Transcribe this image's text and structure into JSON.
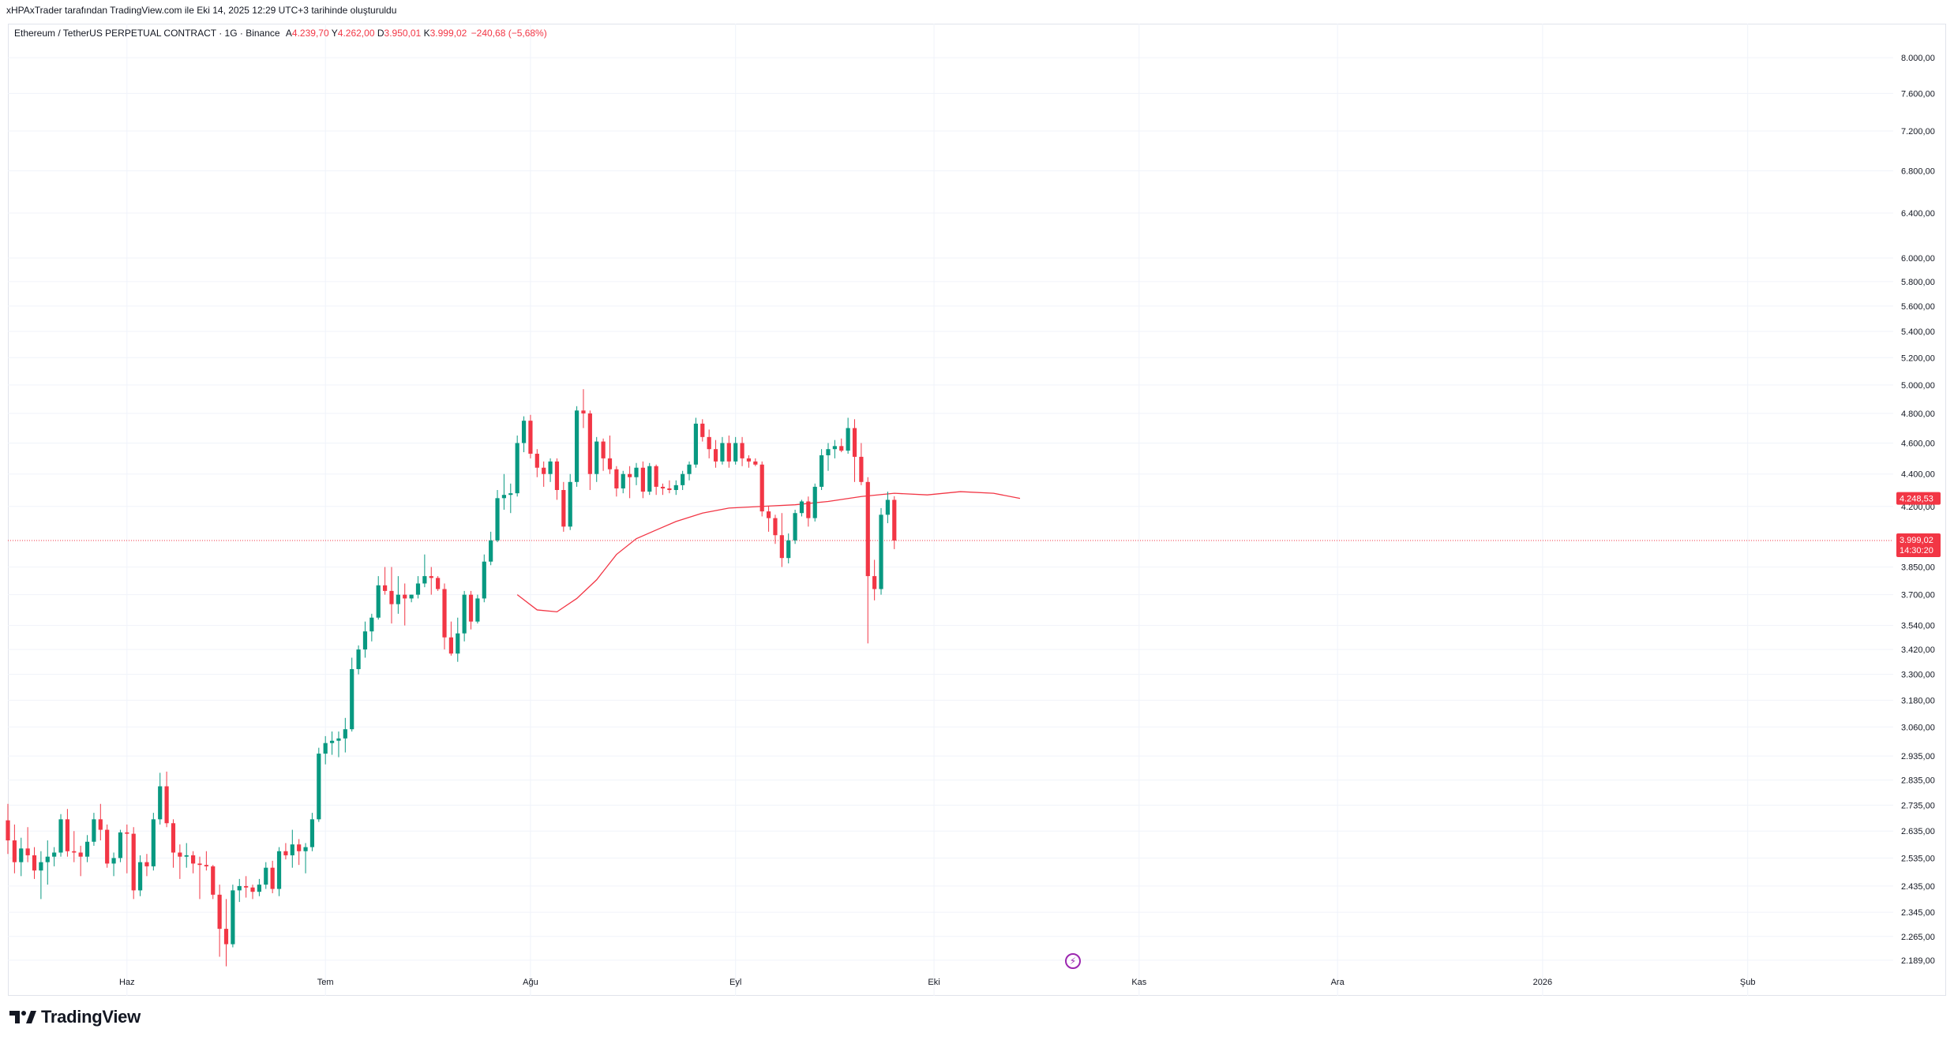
{
  "publish_line": "xHPAxTrader tarafından TradingView.com ile Eki 14, 2025 12:29 UTC+3 tarihinde oluşturuldu",
  "legend": {
    "symbol": "Ethereum / TetherUS PERPETUAL CONTRACT · 1G · Binance",
    "o_label": "A",
    "o_value": "4.239,70",
    "h_label": "Y",
    "h_value": "4.262,00",
    "l_label": "D",
    "l_value": "3.950,01",
    "c_label": "K",
    "c_value": "3.999,02",
    "change": "−240,68 (−5,68%)"
  },
  "price_tags": {
    "ma_value": "4.248,53",
    "last_price": "3.999,02",
    "countdown": "14:30:20"
  },
  "logo_text": "TradingView",
  "colors": {
    "up": "#089981",
    "down": "#f23645",
    "ma": "#f23645",
    "grid": "#f0f3fa",
    "tag_bg": "#f23645"
  },
  "chart_data": {
    "type": "candlestick",
    "title": "",
    "xlabel": "",
    "ylabel": "",
    "y_scale": "log",
    "ylim": [
      2080,
      8400
    ],
    "y_ticks": [
      {
        "value": 8000,
        "label": "8.000,00"
      },
      {
        "value": 7600,
        "label": "7.600,00"
      },
      {
        "value": 7200,
        "label": "7.200,00"
      },
      {
        "value": 6800,
        "label": "6.800,00"
      },
      {
        "value": 6400,
        "label": "6.400,00"
      },
      {
        "value": 6000,
        "label": "6.000,00"
      },
      {
        "value": 5800,
        "label": "5.800,00"
      },
      {
        "value": 5600,
        "label": "5.600,00"
      },
      {
        "value": 5400,
        "label": "5.400,00"
      },
      {
        "value": 5200,
        "label": "5.200,00"
      },
      {
        "value": 5000,
        "label": "5.000,00"
      },
      {
        "value": 4800,
        "label": "4.800,00"
      },
      {
        "value": 4600,
        "label": "4.600,00"
      },
      {
        "value": 4400,
        "label": "4.400,00"
      },
      {
        "value": 4200,
        "label": "4.200,00"
      },
      {
        "value": 3850,
        "label": "3.850,00"
      },
      {
        "value": 3700,
        "label": "3.700,00"
      },
      {
        "value": 3540,
        "label": "3.540,00"
      },
      {
        "value": 3420,
        "label": "3.420,00"
      },
      {
        "value": 3300,
        "label": "3.300,00"
      },
      {
        "value": 3180,
        "label": "3.180,00"
      },
      {
        "value": 3060,
        "label": "3.060,00"
      },
      {
        "value": 2935,
        "label": "2.935,00"
      },
      {
        "value": 2835,
        "label": "2.835,00"
      },
      {
        "value": 2735,
        "label": "2.735,00"
      },
      {
        "value": 2635,
        "label": "2.635,00"
      },
      {
        "value": 2535,
        "label": "2.535,00"
      },
      {
        "value": 2435,
        "label": "2.435,00"
      },
      {
        "value": 2345,
        "label": "2.345,00"
      },
      {
        "value": 2265,
        "label": "2.265,00"
      },
      {
        "value": 2189,
        "label": "2.189,00"
      }
    ],
    "x_ticks": [
      {
        "date": "2025-06-01",
        "label": "Haz"
      },
      {
        "date": "2025-07-01",
        "label": "Tem"
      },
      {
        "date": "2025-08-01",
        "label": "Ağu"
      },
      {
        "date": "2025-09-01",
        "label": "Eyl"
      },
      {
        "date": "2025-10-01",
        "label": "Eki"
      },
      {
        "date": "2025-11-01",
        "label": "Kas"
      },
      {
        "date": "2025-12-01",
        "label": "Ara"
      },
      {
        "date": "2026-01-01",
        "label": "2026"
      },
      {
        "date": "2026-02-01",
        "label": "Şub"
      }
    ],
    "x_range": [
      "2025-05-14",
      "2026-02-23"
    ],
    "first_date": "2025-05-14",
    "last_price": 3999.02,
    "candles": [
      [
        2676,
        2740,
        2550,
        2600
      ],
      [
        2600,
        2660,
        2480,
        2520
      ],
      [
        2520,
        2610,
        2470,
        2570
      ],
      [
        2570,
        2650,
        2520,
        2545
      ],
      [
        2545,
        2575,
        2460,
        2490
      ],
      [
        2490,
        2560,
        2390,
        2520
      ],
      [
        2520,
        2600,
        2440,
        2540
      ],
      [
        2540,
        2575,
        2505,
        2555
      ],
      [
        2555,
        2700,
        2540,
        2680
      ],
      [
        2680,
        2720,
        2540,
        2560
      ],
      [
        2560,
        2635,
        2520,
        2555
      ],
      [
        2555,
        2580,
        2470,
        2540
      ],
      [
        2540,
        2620,
        2520,
        2595
      ],
      [
        2595,
        2705,
        2580,
        2680
      ],
      [
        2680,
        2740,
        2600,
        2640
      ],
      [
        2640,
        2660,
        2500,
        2515
      ],
      [
        2515,
        2555,
        2470,
        2535
      ],
      [
        2535,
        2640,
        2520,
        2630
      ],
      [
        2630,
        2660,
        2480,
        2625
      ],
      [
        2625,
        2650,
        2390,
        2420
      ],
      [
        2420,
        2545,
        2400,
        2520
      ],
      [
        2520,
        2550,
        2470,
        2505
      ],
      [
        2505,
        2705,
        2490,
        2680
      ],
      [
        2680,
        2865,
        2660,
        2810
      ],
      [
        2810,
        2870,
        2650,
        2665
      ],
      [
        2665,
        2680,
        2500,
        2555
      ],
      [
        2555,
        2585,
        2460,
        2540
      ],
      [
        2540,
        2590,
        2500,
        2545
      ],
      [
        2545,
        2560,
        2480,
        2515
      ],
      [
        2515,
        2540,
        2390,
        2510
      ],
      [
        2510,
        2560,
        2490,
        2505
      ],
      [
        2505,
        2510,
        2390,
        2405
      ],
      [
        2405,
        2440,
        2200,
        2290
      ],
      [
        2290,
        2390,
        2170,
        2240
      ],
      [
        2240,
        2440,
        2230,
        2420
      ],
      [
        2420,
        2460,
        2380,
        2435
      ],
      [
        2435,
        2470,
        2395,
        2430
      ],
      [
        2430,
        2440,
        2390,
        2415
      ],
      [
        2415,
        2460,
        2400,
        2440
      ],
      [
        2440,
        2520,
        2425,
        2500
      ],
      [
        2500,
        2525,
        2410,
        2425
      ],
      [
        2425,
        2575,
        2400,
        2560
      ],
      [
        2560,
        2590,
        2530,
        2545
      ],
      [
        2545,
        2640,
        2500,
        2585
      ],
      [
        2585,
        2605,
        2510,
        2560
      ],
      [
        2560,
        2590,
        2480,
        2575
      ],
      [
        2575,
        2705,
        2560,
        2680
      ],
      [
        2680,
        2970,
        2670,
        2945
      ],
      [
        2945,
        3020,
        2900,
        2990
      ],
      [
        2990,
        3040,
        2940,
        3000
      ],
      [
        3000,
        3040,
        2930,
        3010
      ],
      [
        3010,
        3100,
        2950,
        3050
      ],
      [
        3050,
        3380,
        3040,
        3325
      ],
      [
        3325,
        3440,
        3300,
        3420
      ],
      [
        3420,
        3560,
        3380,
        3510
      ],
      [
        3510,
        3600,
        3460,
        3580
      ],
      [
        3580,
        3800,
        3570,
        3750
      ],
      [
        3750,
        3850,
        3700,
        3720
      ],
      [
        3720,
        3850,
        3550,
        3650
      ],
      [
        3650,
        3800,
        3600,
        3700
      ],
      [
        3700,
        3760,
        3540,
        3680
      ],
      [
        3680,
        3700,
        3660,
        3700
      ],
      [
        3700,
        3800,
        3680,
        3760
      ],
      [
        3760,
        3920,
        3740,
        3800
      ],
      [
        3800,
        3850,
        3700,
        3790
      ],
      [
        3790,
        3800,
        3720,
        3730
      ],
      [
        3730,
        3760,
        3420,
        3480
      ],
      [
        3480,
        3560,
        3390,
        3400
      ],
      [
        3400,
        3580,
        3360,
        3500
      ],
      [
        3500,
        3720,
        3460,
        3700
      ],
      [
        3700,
        3720,
        3520,
        3560
      ],
      [
        3560,
        3700,
        3550,
        3680
      ],
      [
        3680,
        3920,
        3660,
        3880
      ],
      [
        3880,
        4050,
        3860,
        4000
      ],
      [
        4000,
        4300,
        3990,
        4250
      ],
      [
        4250,
        4400,
        4180,
        4270
      ],
      [
        4270,
        4340,
        4160,
        4280
      ],
      [
        4280,
        4650,
        4260,
        4600
      ],
      [
        4600,
        4780,
        4540,
        4750
      ],
      [
        4750,
        4790,
        4500,
        4530
      ],
      [
        4530,
        4560,
        4380,
        4440
      ],
      [
        4440,
        4480,
        4320,
        4400
      ],
      [
        4400,
        4500,
        4350,
        4480
      ],
      [
        4480,
        4500,
        4240,
        4300
      ],
      [
        4300,
        4350,
        4050,
        4080
      ],
      [
        4080,
        4400,
        4060,
        4350
      ],
      [
        4350,
        4850,
        4320,
        4820
      ],
      [
        4820,
        4970,
        4700,
        4800
      ],
      [
        4800,
        4820,
        4300,
        4400
      ],
      [
        4400,
        4640,
        4350,
        4610
      ],
      [
        4610,
        4630,
        4420,
        4500
      ],
      [
        4500,
        4650,
        4400,
        4430
      ],
      [
        4430,
        4450,
        4260,
        4310
      ],
      [
        4310,
        4420,
        4280,
        4400
      ],
      [
        4400,
        4450,
        4250,
        4380
      ],
      [
        4380,
        4470,
        4330,
        4440
      ],
      [
        4440,
        4480,
        4250,
        4290
      ],
      [
        4290,
        4470,
        4270,
        4450
      ],
      [
        4450,
        4460,
        4270,
        4320
      ],
      [
        4320,
        4340,
        4270,
        4310
      ],
      [
        4310,
        4360,
        4280,
        4300
      ],
      [
        4300,
        4360,
        4270,
        4330
      ],
      [
        4330,
        4420,
        4300,
        4400
      ],
      [
        4400,
        4480,
        4360,
        4460
      ],
      [
        4460,
        4770,
        4440,
        4730
      ],
      [
        4730,
        4760,
        4610,
        4640
      ],
      [
        4640,
        4690,
        4500,
        4560
      ],
      [
        4560,
        4620,
        4440,
        4480
      ],
      [
        4480,
        4640,
        4460,
        4600
      ],
      [
        4600,
        4650,
        4440,
        4480
      ],
      [
        4480,
        4640,
        4460,
        4600
      ],
      [
        4600,
        4640,
        4450,
        4500
      ],
      [
        4500,
        4520,
        4440,
        4480
      ],
      [
        4480,
        4500,
        4450,
        4460
      ],
      [
        4460,
        4480,
        4140,
        4170
      ],
      [
        4170,
        4200,
        4050,
        4130
      ],
      [
        4130,
        4150,
        3980,
        4030
      ],
      [
        4030,
        4160,
        3850,
        3900
      ],
      [
        3900,
        4040,
        3870,
        4000
      ],
      [
        4000,
        4180,
        3980,
        4160
      ],
      [
        4160,
        4240,
        4140,
        4230
      ],
      [
        4230,
        4260,
        4080,
        4130
      ],
      [
        4130,
        4340,
        4110,
        4320
      ],
      [
        4320,
        4560,
        4300,
        4520
      ],
      [
        4520,
        4600,
        4420,
        4560
      ],
      [
        4560,
        4620,
        4500,
        4580
      ],
      [
        4580,
        4630,
        4540,
        4550
      ],
      [
        4550,
        4770,
        4530,
        4700
      ],
      [
        4700,
        4760,
        4350,
        4510
      ],
      [
        4510,
        4600,
        4330,
        4350
      ],
      [
        4350,
        4380,
        3450,
        3800
      ],
      [
        3800,
        3890,
        3670,
        3730
      ],
      [
        3730,
        4190,
        3700,
        4150
      ],
      [
        4150,
        4290,
        4100,
        4239.7
      ],
      [
        4239.7,
        4262,
        3950.01,
        3999.02
      ]
    ],
    "ma_series": [
      {
        "date": "2025-07-30",
        "value": 3700
      },
      {
        "date": "2025-08-02",
        "value": 3620
      },
      {
        "date": "2025-08-05",
        "value": 3610
      },
      {
        "date": "2025-08-08",
        "value": 3680
      },
      {
        "date": "2025-08-11",
        "value": 3780
      },
      {
        "date": "2025-08-14",
        "value": 3920
      },
      {
        "date": "2025-08-17",
        "value": 4010
      },
      {
        "date": "2025-08-20",
        "value": 4060
      },
      {
        "date": "2025-08-23",
        "value": 4110
      },
      {
        "date": "2025-08-27",
        "value": 4160
      },
      {
        "date": "2025-08-31",
        "value": 4190
      },
      {
        "date": "2025-09-05",
        "value": 4200
      },
      {
        "date": "2025-09-10",
        "value": 4210
      },
      {
        "date": "2025-09-15",
        "value": 4230
      },
      {
        "date": "2025-09-20",
        "value": 4260
      },
      {
        "date": "2025-09-25",
        "value": 4280
      },
      {
        "date": "2025-09-30",
        "value": 4270
      },
      {
        "date": "2025-10-05",
        "value": 4290
      },
      {
        "date": "2025-10-10",
        "value": 4280
      },
      {
        "date": "2025-10-14",
        "value": 4248.53
      }
    ]
  }
}
